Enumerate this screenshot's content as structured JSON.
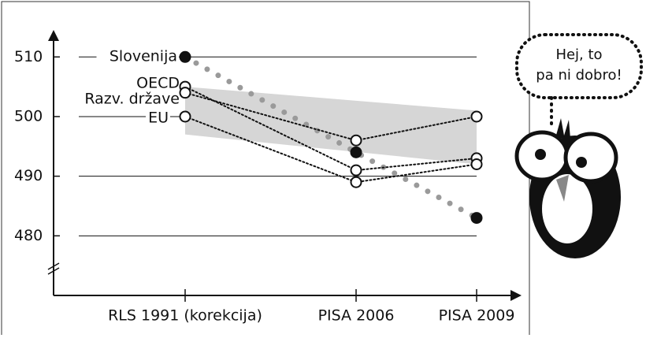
{
  "chart_data": {
    "type": "line",
    "categories": [
      "RLS 1991 (korekcija)",
      "PISA 2006",
      "PISA 2009"
    ],
    "series": [
      {
        "name": "Slovenija",
        "color": "#9a9a9a",
        "marker": "filled",
        "values": [
          510,
          494,
          483
        ]
      },
      {
        "name": "OECD",
        "color": "#111111",
        "marker": "open",
        "values": [
          505,
          491,
          493
        ]
      },
      {
        "name": "Razv. države",
        "color": "#111111",
        "marker": "open",
        "values": [
          504,
          496,
          500
        ]
      },
      {
        "name": "EU",
        "color": "#111111",
        "marker": "open",
        "values": [
          500,
          489,
          492
        ]
      }
    ],
    "band": {
      "color": "#d6d6d6",
      "upper": [
        505,
        null,
        501
      ],
      "lower": [
        497,
        null,
        492
      ]
    },
    "ylim": [
      470,
      514
    ],
    "yticks": [
      480,
      490,
      500,
      510
    ],
    "grid": true
  },
  "speech_bubble": {
    "lines": [
      "Hej, to",
      "pa ni dobro!"
    ]
  }
}
